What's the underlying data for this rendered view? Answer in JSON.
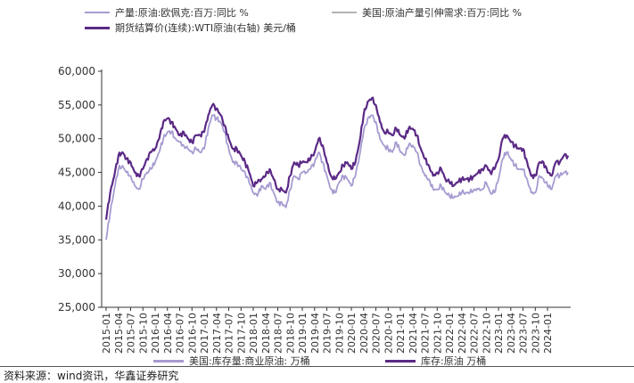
{
  "legend_top": [
    {
      "label": "产量:原油:欧佩克:百万:同比 %",
      "color": "#a79bd1"
    },
    {
      "label": "美国:原油产量引伸需求:百万:同比 %",
      "color": "#b4b4b4"
    },
    {
      "label": "期货结算价(连续):WTI原油(右轴) 美元/桶",
      "color": "#5b2a86"
    }
  ],
  "source_note": "资料来源：wind资讯，华鑫证券研究",
  "chart_data": {
    "type": "line",
    "title": "",
    "ylim": [
      25000,
      60000
    ],
    "yticks": [
      25000,
      30000,
      35000,
      40000,
      45000,
      50000,
      55000,
      60000
    ],
    "ytick_labels": [
      "25,000",
      "30,000",
      "35,000",
      "40,000",
      "45,000",
      "50,000",
      "55,000",
      "60,000"
    ],
    "xticks": [
      "2015-01",
      "2015-04",
      "2015-07",
      "2015-10",
      "2016-01",
      "2016-04",
      "2016-07",
      "2016-10",
      "2017-01",
      "2017-04",
      "2017-07",
      "2017-10",
      "2018-01",
      "2018-04",
      "2018-07",
      "2018-10",
      "2019-01",
      "2019-04",
      "2019-07",
      "2019-10",
      "2020-01",
      "2020-04",
      "2020-07",
      "2020-10",
      "2021-01",
      "2021-04",
      "2021-07",
      "2021-10",
      "2022-01",
      "2022-04",
      "2022-07",
      "2022-10",
      "2023-01",
      "2023-04",
      "2023-07",
      "2023-10",
      "2024-01"
    ],
    "x_start": "2015-01",
    "x_end": "2024-06",
    "grid": false,
    "legend_position": "bottom",
    "series": [
      {
        "name": "美国:库存量:商业原油: 万桶",
        "color": "#a79bd1",
        "anchors": [
          [
            "2015-01",
            35000
          ],
          [
            "2015-02",
            39000
          ],
          [
            "2015-03",
            42500
          ],
          [
            "2015-04",
            45500
          ],
          [
            "2015-05",
            46000
          ],
          [
            "2015-06",
            45000
          ],
          [
            "2015-07",
            44500
          ],
          [
            "2015-08",
            43000
          ],
          [
            "2015-09",
            42500
          ],
          [
            "2015-10",
            44000
          ],
          [
            "2015-11",
            45000
          ],
          [
            "2015-12",
            45500
          ],
          [
            "2016-01",
            46500
          ],
          [
            "2016-02",
            48000
          ],
          [
            "2016-03",
            50000
          ],
          [
            "2016-04",
            51000
          ],
          [
            "2016-05",
            51000
          ],
          [
            "2016-06",
            50000
          ],
          [
            "2016-07",
            49500
          ],
          [
            "2016-08",
            49000
          ],
          [
            "2016-09",
            48500
          ],
          [
            "2016-10",
            48000
          ],
          [
            "2016-11",
            48500
          ],
          [
            "2016-12",
            48000
          ],
          [
            "2017-01",
            48500
          ],
          [
            "2017-02",
            51500
          ],
          [
            "2017-03",
            53500
          ],
          [
            "2017-04",
            53000
          ],
          [
            "2017-05",
            52500
          ],
          [
            "2017-06",
            51000
          ],
          [
            "2017-07",
            48500
          ],
          [
            "2017-08",
            46500
          ],
          [
            "2017-09",
            46500
          ],
          [
            "2017-10",
            45500
          ],
          [
            "2017-11",
            45000
          ],
          [
            "2017-12",
            43500
          ],
          [
            "2018-01",
            42000
          ],
          [
            "2018-02",
            41500
          ],
          [
            "2018-03",
            43000
          ],
          [
            "2018-04",
            42500
          ],
          [
            "2018-05",
            43500
          ],
          [
            "2018-06",
            42000
          ],
          [
            "2018-07",
            40500
          ],
          [
            "2018-08",
            40500
          ],
          [
            "2018-09",
            39800
          ],
          [
            "2018-10",
            42500
          ],
          [
            "2018-11",
            44500
          ],
          [
            "2018-12",
            44000
          ],
          [
            "2019-01",
            45000
          ],
          [
            "2019-02",
            45000
          ],
          [
            "2019-03",
            45500
          ],
          [
            "2019-04",
            46500
          ],
          [
            "2019-05",
            48000
          ],
          [
            "2019-06",
            46500
          ],
          [
            "2019-07",
            44500
          ],
          [
            "2019-08",
            42500
          ],
          [
            "2019-09",
            42000
          ],
          [
            "2019-10",
            43500
          ],
          [
            "2019-11",
            44500
          ],
          [
            "2019-12",
            44000
          ],
          [
            "2020-01",
            43000
          ],
          [
            "2020-02",
            44500
          ],
          [
            "2020-03",
            47500
          ],
          [
            "2020-04",
            51000
          ],
          [
            "2020-05",
            53000
          ],
          [
            "2020-06",
            53500
          ],
          [
            "2020-07",
            52500
          ],
          [
            "2020-08",
            50000
          ],
          [
            "2020-09",
            49000
          ],
          [
            "2020-10",
            48500
          ],
          [
            "2020-11",
            48000
          ],
          [
            "2020-12",
            49500
          ],
          [
            "2021-01",
            48000
          ],
          [
            "2021-02",
            47500
          ],
          [
            "2021-03",
            49000
          ],
          [
            "2021-04",
            49000
          ],
          [
            "2021-05",
            48000
          ],
          [
            "2021-06",
            46000
          ],
          [
            "2021-07",
            44500
          ],
          [
            "2021-08",
            44000
          ],
          [
            "2021-09",
            42500
          ],
          [
            "2021-10",
            42500
          ],
          [
            "2021-11",
            43000
          ],
          [
            "2021-12",
            42000
          ],
          [
            "2022-01",
            41500
          ],
          [
            "2022-02",
            41200
          ],
          [
            "2022-03",
            41500
          ],
          [
            "2022-04",
            42000
          ],
          [
            "2022-05",
            42000
          ],
          [
            "2022-06",
            42000
          ],
          [
            "2022-07",
            42500
          ],
          [
            "2022-08",
            42500
          ],
          [
            "2022-09",
            42500
          ],
          [
            "2022-10",
            43500
          ],
          [
            "2022-11",
            42000
          ],
          [
            "2022-12",
            42000
          ],
          [
            "2023-01",
            44000
          ],
          [
            "2023-02",
            47000
          ],
          [
            "2023-03",
            48000
          ],
          [
            "2023-04",
            47000
          ],
          [
            "2023-05",
            46000
          ],
          [
            "2023-06",
            45500
          ],
          [
            "2023-07",
            45500
          ],
          [
            "2023-08",
            44000
          ],
          [
            "2023-09",
            42000
          ],
          [
            "2023-10",
            42000
          ],
          [
            "2023-11",
            44500
          ],
          [
            "2023-12",
            44000
          ],
          [
            "2024-01",
            43000
          ],
          [
            "2024-02",
            42500
          ],
          [
            "2024-03",
            44500
          ],
          [
            "2024-04",
            44500
          ],
          [
            "2024-05",
            45000
          ],
          [
            "2024-06",
            45000
          ]
        ]
      },
      {
        "name": "库存:原油 万桶",
        "color": "#5b2a86",
        "anchors": [
          [
            "2015-01",
            38000
          ],
          [
            "2015-02",
            42000
          ],
          [
            "2015-03",
            44500
          ],
          [
            "2015-04",
            47500
          ],
          [
            "2015-05",
            48000
          ],
          [
            "2015-06",
            47000
          ],
          [
            "2015-07",
            46500
          ],
          [
            "2015-08",
            45000
          ],
          [
            "2015-09",
            44500
          ],
          [
            "2015-10",
            45500
          ],
          [
            "2015-11",
            47000
          ],
          [
            "2015-12",
            48000
          ],
          [
            "2016-01",
            48500
          ],
          [
            "2016-02",
            50000
          ],
          [
            "2016-03",
            52500
          ],
          [
            "2016-04",
            53000
          ],
          [
            "2016-05",
            52500
          ],
          [
            "2016-06",
            51500
          ],
          [
            "2016-07",
            50500
          ],
          [
            "2016-08",
            51000
          ],
          [
            "2016-09",
            50000
          ],
          [
            "2016-10",
            49500
          ],
          [
            "2016-11",
            50500
          ],
          [
            "2016-12",
            50500
          ],
          [
            "2017-01",
            51000
          ],
          [
            "2017-02",
            53500
          ],
          [
            "2017-03",
            55000
          ],
          [
            "2017-04",
            54500
          ],
          [
            "2017-05",
            53500
          ],
          [
            "2017-06",
            52000
          ],
          [
            "2017-07",
            50000
          ],
          [
            "2017-08",
            48500
          ],
          [
            "2017-09",
            48500
          ],
          [
            "2017-10",
            47500
          ],
          [
            "2017-11",
            46500
          ],
          [
            "2017-12",
            45000
          ],
          [
            "2018-01",
            43000
          ],
          [
            "2018-02",
            43500
          ],
          [
            "2018-03",
            44000
          ],
          [
            "2018-04",
            44500
          ],
          [
            "2018-05",
            45500
          ],
          [
            "2018-06",
            44000
          ],
          [
            "2018-07",
            42500
          ],
          [
            "2018-08",
            42500
          ],
          [
            "2018-09",
            42000
          ],
          [
            "2018-10",
            44500
          ],
          [
            "2018-11",
            46500
          ],
          [
            "2018-12",
            46000
          ],
          [
            "2019-01",
            46500
          ],
          [
            "2019-02",
            46500
          ],
          [
            "2019-03",
            47000
          ],
          [
            "2019-04",
            48000
          ],
          [
            "2019-05",
            50000
          ],
          [
            "2019-06",
            49000
          ],
          [
            "2019-07",
            46500
          ],
          [
            "2019-08",
            44500
          ],
          [
            "2019-09",
            44000
          ],
          [
            "2019-10",
            45000
          ],
          [
            "2019-11",
            46000
          ],
          [
            "2019-12",
            46500
          ],
          [
            "2020-01",
            45500
          ],
          [
            "2020-02",
            46500
          ],
          [
            "2020-03",
            49500
          ],
          [
            "2020-04",
            53500
          ],
          [
            "2020-05",
            55500
          ],
          [
            "2020-06",
            56000
          ],
          [
            "2020-07",
            55000
          ],
          [
            "2020-08",
            52500
          ],
          [
            "2020-09",
            51000
          ],
          [
            "2020-10",
            51000
          ],
          [
            "2020-11",
            50500
          ],
          [
            "2020-12",
            51500
          ],
          [
            "2021-01",
            50500
          ],
          [
            "2021-02",
            50000
          ],
          [
            "2021-03",
            51500
          ],
          [
            "2021-04",
            51500
          ],
          [
            "2021-05",
            50500
          ],
          [
            "2021-06",
            48500
          ],
          [
            "2021-07",
            47000
          ],
          [
            "2021-08",
            46000
          ],
          [
            "2021-09",
            44500
          ],
          [
            "2021-10",
            45000
          ],
          [
            "2021-11",
            45500
          ],
          [
            "2021-12",
            44000
          ],
          [
            "2022-01",
            43500
          ],
          [
            "2022-02",
            43000
          ],
          [
            "2022-03",
            43500
          ],
          [
            "2022-04",
            44000
          ],
          [
            "2022-05",
            44000
          ],
          [
            "2022-06",
            44000
          ],
          [
            "2022-07",
            44500
          ],
          [
            "2022-08",
            45000
          ],
          [
            "2022-09",
            45500
          ],
          [
            "2022-10",
            46000
          ],
          [
            "2022-11",
            45000
          ],
          [
            "2022-12",
            45500
          ],
          [
            "2023-01",
            47000
          ],
          [
            "2023-02",
            50000
          ],
          [
            "2023-03",
            50500
          ],
          [
            "2023-04",
            49500
          ],
          [
            "2023-05",
            49000
          ],
          [
            "2023-06",
            48500
          ],
          [
            "2023-07",
            48500
          ],
          [
            "2023-08",
            46500
          ],
          [
            "2023-09",
            44500
          ],
          [
            "2023-10",
            44500
          ],
          [
            "2023-11",
            46500
          ],
          [
            "2023-12",
            46500
          ],
          [
            "2024-01",
            45000
          ],
          [
            "2024-02",
            44500
          ],
          [
            "2024-03",
            46500
          ],
          [
            "2024-04",
            46500
          ],
          [
            "2024-05",
            47500
          ],
          [
            "2024-06",
            47500
          ]
        ]
      }
    ]
  }
}
